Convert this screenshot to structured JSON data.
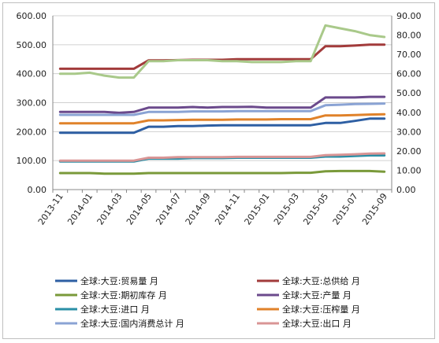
{
  "chart_data": {
    "type": "line",
    "x": [
      "2013-11",
      "2013-12",
      "2014-01",
      "2014-02",
      "2014-03",
      "2014-04",
      "2014-05",
      "2014-06",
      "2014-07",
      "2014-08",
      "2014-09",
      "2014-10",
      "2014-11",
      "2014-12",
      "2015-01",
      "2015-02",
      "2015-03",
      "2015-04",
      "2015-05",
      "2015-06",
      "2015-07",
      "2015-08",
      "2015-09"
    ],
    "x_tick_labels": [
      "2013-11",
      "2014-01",
      "2014-03",
      "2014-05",
      "2014-07",
      "2014-09",
      "2014-11",
      "2015-01",
      "2015-03",
      "2015-05",
      "2015-07",
      "2015-09"
    ],
    "left_axis": {
      "ylim": [
        0,
        600
      ],
      "ticks": [
        "0.00",
        "100.00",
        "200.00",
        "300.00",
        "400.00",
        "500.00",
        "600.00"
      ]
    },
    "right_axis": {
      "ylim": [
        0,
        90
      ],
      "ticks": [
        "0.00",
        "10.00",
        "20.00",
        "30.00",
        "40.00",
        "50.00",
        "60.00",
        "70.00",
        "80.00",
        "90.00"
      ]
    },
    "grid": "horizontal",
    "legend_position": "bottom",
    "series": [
      {
        "name": "全球:大豆:贸易量 月",
        "color": "#2e5fa3",
        "axis": "left",
        "values": [
          196,
          196,
          196,
          196,
          196,
          196,
          217,
          217,
          219,
          219,
          221,
          222,
          222,
          222,
          222,
          222,
          222,
          222,
          230,
          230,
          237,
          245,
          245
        ]
      },
      {
        "name": "全球:大豆:总供给 月",
        "color": "#a23b3b",
        "axis": "left",
        "values": [
          417,
          417,
          417,
          417,
          417,
          417,
          446,
          446,
          447,
          448,
          448,
          448,
          450,
          450,
          450,
          450,
          450,
          450,
          495,
          495,
          497,
          500,
          500
        ]
      },
      {
        "name": "全球:大豆:期初库存 月",
        "color": "#7a9a3a",
        "axis": "left",
        "values": [
          57,
          57,
          57,
          55,
          55,
          55,
          57,
          57,
          57,
          57,
          57,
          57,
          57,
          57,
          57,
          57,
          58,
          58,
          63,
          64,
          64,
          64,
          62
        ]
      },
      {
        "name": "全球:大豆:产量 月",
        "color": "#6b4a8c",
        "axis": "left",
        "values": [
          268,
          268,
          268,
          268,
          265,
          268,
          283,
          283,
          283,
          285,
          283,
          285,
          285,
          286,
          283,
          283,
          283,
          283,
          318,
          318,
          318,
          320,
          320
        ]
      },
      {
        "name": "全球:大豆:进口 月",
        "color": "#2a8fa6",
        "axis": "left",
        "values": [
          97,
          97,
          97,
          97,
          97,
          97,
          107,
          107,
          107,
          109,
          109,
          109,
          110,
          110,
          110,
          110,
          110,
          110,
          114,
          114,
          116,
          118,
          118
        ]
      },
      {
        "name": "全球:大豆:压榨量 月",
        "color": "#e0822a",
        "axis": "left",
        "values": [
          229,
          229,
          229,
          229,
          229,
          229,
          239,
          239,
          240,
          241,
          241,
          241,
          242,
          242,
          242,
          243,
          243,
          243,
          256,
          256,
          257,
          259,
          260
        ]
      },
      {
        "name": "全球:大豆:国内消费总计 月",
        "color": "#8aa3d4",
        "axis": "left",
        "values": [
          258,
          258,
          258,
          258,
          258,
          258,
          268,
          268,
          268,
          270,
          270,
          270,
          271,
          271,
          271,
          271,
          271,
          271,
          291,
          293,
          295,
          296,
          297
        ]
      },
      {
        "name": "全球:大豆:出口 月",
        "color": "#d99595",
        "axis": "left",
        "values": [
          100,
          100,
          100,
          100,
          100,
          100,
          110,
          110,
          112,
          112,
          112,
          112,
          113,
          113,
          113,
          113,
          113,
          113,
          119,
          120,
          122,
          124,
          125
        ]
      },
      {
        "name": "",
        "color": "#a9c98a",
        "axis": "right",
        "values": [
          60,
          60,
          60.5,
          59,
          58,
          58,
          66.5,
          66.5,
          67,
          67,
          67,
          66.5,
          66.5,
          66,
          66,
          66,
          66.5,
          66.5,
          85,
          83.5,
          82,
          80,
          79
        ]
      }
    ]
  }
}
